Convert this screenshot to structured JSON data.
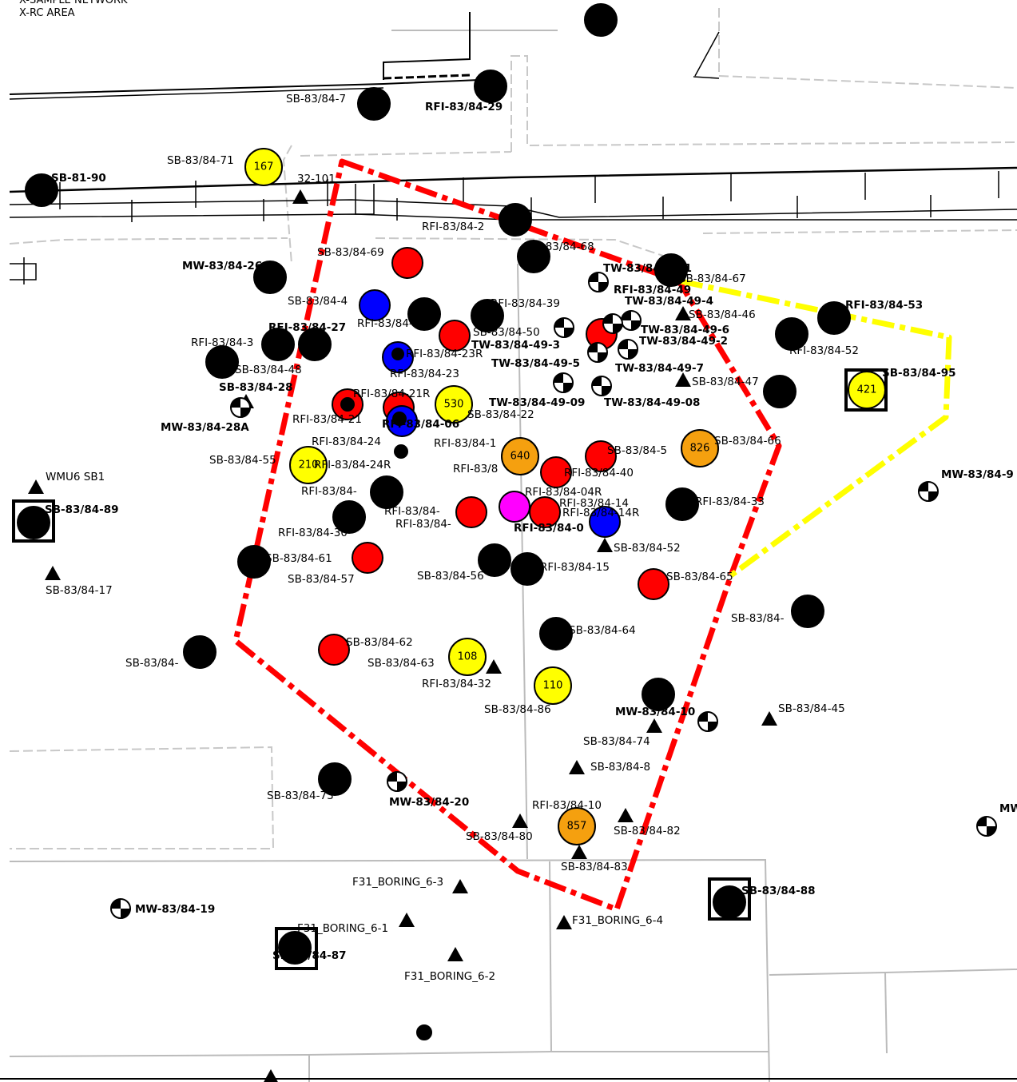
{
  "header": {
    "line1": "X-SAMPLE NETWORK",
    "line2": "X-RC AREA"
  },
  "colors": {
    "black": "#000000",
    "red": "#ff0000",
    "blue": "#0000ff",
    "yellow": "#ffff00",
    "orange": "#f5a00f",
    "magenta": "#ff00ff",
    "road": "#bbbbbb",
    "parcel": "#c8c8c8"
  },
  "symbol_types": {
    "black_dot": "sample location",
    "red_dot": "sample location",
    "blue_dot": "sample location",
    "valued_circle": "sample location with value",
    "triangle": "boring location",
    "well": "monitoring well symbol",
    "boxed": "boxed sample location"
  },
  "valued_circles": [
    {
      "value": "167",
      "fill": "yellow"
    },
    {
      "value": "530",
      "fill": "yellow"
    },
    {
      "value": "210",
      "fill": "yellow"
    },
    {
      "value": "640",
      "fill": "orange"
    },
    {
      "value": "826",
      "fill": "orange"
    },
    {
      "value": "421",
      "fill": "yellow"
    },
    {
      "value": "108",
      "fill": "yellow"
    },
    {
      "value": "110",
      "fill": "yellow"
    },
    {
      "value": "857",
      "fill": "orange"
    }
  ],
  "labels": [
    {
      "text": "SB-83/84-7",
      "bold": false
    },
    {
      "text": "RFI-83/84-29",
      "bold": true
    },
    {
      "text": "SB-83/84-71",
      "bold": false
    },
    {
      "text": "SB-81-90",
      "bold": true
    },
    {
      "text": "32-101",
      "bold": false
    },
    {
      "text": "RFI-83/84-2",
      "bold": false
    },
    {
      "text": "SB-83/84-68",
      "bold": false
    },
    {
      "text": "MW-83/84-26",
      "bold": true
    },
    {
      "text": "SB-83/84-69",
      "bold": false
    },
    {
      "text": "TW-83/84-49-1",
      "bold": true
    },
    {
      "text": "SB-83/84-67",
      "bold": false
    },
    {
      "text": "RFI-83/84-49",
      "bold": true
    },
    {
      "text": "TW-83/84-49-4",
      "bold": true
    },
    {
      "text": "RFI-83/84-53",
      "bold": true
    },
    {
      "text": "SB-83/84-4",
      "bold": false
    },
    {
      "text": "RFI-83/84-39",
      "bold": false
    },
    {
      "text": "SB-83/84-46",
      "bold": false
    },
    {
      "text": "RFI-83/84-5",
      "bold": false
    },
    {
      "text": "RFI-83/84-27",
      "bold": true
    },
    {
      "text": "SB-83/84-50",
      "bold": false
    },
    {
      "text": "TW-83/84-49-6",
      "bold": true
    },
    {
      "text": "TW-83/84-49-3",
      "bold": true
    },
    {
      "text": "TW-83/84-49-2",
      "bold": true
    },
    {
      "text": "RFI-83/84-3",
      "bold": false
    },
    {
      "text": "RFI-83/84-23R",
      "bold": false
    },
    {
      "text": "RFI-83/84-52",
      "bold": false
    },
    {
      "text": "SB-83/84-48",
      "bold": false
    },
    {
      "text": "TW-83/84-49-5",
      "bold": true
    },
    {
      "text": "TW-83/84-49-7",
      "bold": true
    },
    {
      "text": "RFI-83/84-23",
      "bold": false
    },
    {
      "text": "SB-83/84-47",
      "bold": false
    },
    {
      "text": "SB-83/84-95",
      "bold": true
    },
    {
      "text": "SB-83/84-28",
      "bold": true
    },
    {
      "text": "RFI-83/84-21R",
      "bold": false
    },
    {
      "text": "TW-83/84-49-09",
      "bold": true
    },
    {
      "text": "TW-83/84-49-08",
      "bold": true
    },
    {
      "text": "RFI-83/84-21",
      "bold": false
    },
    {
      "text": "SB-83/84-22",
      "bold": false
    },
    {
      "text": "RFI-83/84-06",
      "bold": true
    },
    {
      "text": "MW-83/84-28A",
      "bold": true
    },
    {
      "text": "RFI-83/84-24",
      "bold": false
    },
    {
      "text": "RFI-83/84-1",
      "bold": false
    },
    {
      "text": "SB-83/84-5",
      "bold": false
    },
    {
      "text": "SB-83/84-66",
      "bold": false
    },
    {
      "text": "SB-83/84-55",
      "bold": false
    },
    {
      "text": "RFI-83/84-24R",
      "bold": false
    },
    {
      "text": "RFI-83/8",
      "bold": false
    },
    {
      "text": "RFI-83/84-40",
      "bold": false
    },
    {
      "text": "WMU6 SB1",
      "bold": false
    },
    {
      "text": "MW-83/84-9",
      "bold": true
    },
    {
      "text": "RFI-83/84-",
      "bold": false
    },
    {
      "text": "RFI-83/84-04R",
      "bold": false
    },
    {
      "text": "SB-83/84-89",
      "bold": true
    },
    {
      "text": "RFI-83/84-14",
      "bold": false
    },
    {
      "text": "RFI-83/84-33",
      "bold": false
    },
    {
      "text": "RFI-83/84-",
      "bold": false
    },
    {
      "text": "RFI-83/84-14R",
      "bold": false
    },
    {
      "text": "RFI-83/84-",
      "bold": false
    },
    {
      "text": "RFI-83/84-0",
      "bold": true
    },
    {
      "text": "RFI-83/84-30",
      "bold": false
    },
    {
      "text": "SB-83/84-52",
      "bold": false
    },
    {
      "text": "SB-83/84-61",
      "bold": false
    },
    {
      "text": "SB-83/84-17",
      "bold": false
    },
    {
      "text": "RFI-83/84-15",
      "bold": false
    },
    {
      "text": "SB-83/84-57",
      "bold": false
    },
    {
      "text": "SB-83/84-56",
      "bold": false
    },
    {
      "text": "SB-83/84-65",
      "bold": false
    },
    {
      "text": "SB-83/84-",
      "bold": false
    },
    {
      "text": "SB-83/84-64",
      "bold": false
    },
    {
      "text": "SB-83/84-62",
      "bold": false
    },
    {
      "text": "SB-83/84-",
      "bold": false
    },
    {
      "text": "SB-83/84-63",
      "bold": false
    },
    {
      "text": "RFI-83/84-32",
      "bold": false
    },
    {
      "text": "SB-83/84-86",
      "bold": false
    },
    {
      "text": "MW-83/84-10",
      "bold": true
    },
    {
      "text": "SB-83/84-45",
      "bold": false
    },
    {
      "text": "SB-83/84-74",
      "bold": false
    },
    {
      "text": "SB-83/84-8",
      "bold": false
    },
    {
      "text": "SB-83/84-73",
      "bold": false
    },
    {
      "text": "MW-83/84-20",
      "bold": true
    },
    {
      "text": "RFI-83/84-10",
      "bold": false
    },
    {
      "text": "MW",
      "bold": true
    },
    {
      "text": "SB-83/84-80",
      "bold": false
    },
    {
      "text": "SB-83/84-82",
      "bold": false
    },
    {
      "text": "SB-83/84-83",
      "bold": false
    },
    {
      "text": "F31_BORING_6-3",
      "bold": false
    },
    {
      "text": "SB-83/84-88",
      "bold": true
    },
    {
      "text": "MW-83/84-19",
      "bold": true
    },
    {
      "text": "F31_BORING_6-1",
      "bold": false
    },
    {
      "text": "F31_BORING_6-4",
      "bold": false
    },
    {
      "text": "SB-83/84-87",
      "bold": true
    },
    {
      "text": "F31_BORING_6-2",
      "bold": false
    }
  ]
}
